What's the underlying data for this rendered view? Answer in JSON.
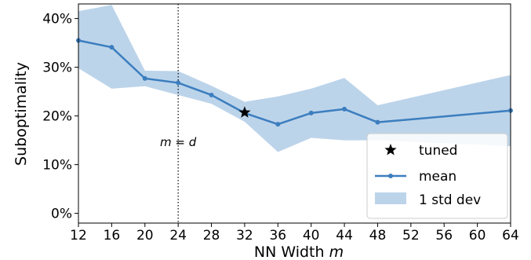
{
  "chart_data": {
    "type": "line",
    "xlabel": "NN Width m",
    "ylabel": "Suboptimality",
    "xlim": [
      12,
      64
    ],
    "ylim": [
      -0.02,
      0.43
    ],
    "x_ticks": [
      12,
      16,
      20,
      24,
      28,
      32,
      36,
      40,
      44,
      48,
      52,
      56,
      60,
      64
    ],
    "x_tick_labels": [
      "12",
      "16",
      "20",
      "24",
      "28",
      "32",
      "36",
      "40",
      "44",
      "48",
      "52",
      "56",
      "60",
      "64"
    ],
    "y_ticks": [
      0.0,
      0.1,
      0.2,
      0.3,
      0.4
    ],
    "y_tick_labels": [
      "0%",
      "10%",
      "20%",
      "30%",
      "40%"
    ],
    "grid": false,
    "legend_position": "lower-right",
    "colors": {
      "mean": "#3c7ebf",
      "band": "#bcd4ea",
      "tuned": "#000000",
      "vline": "#000000"
    },
    "series": [
      {
        "name": "mean",
        "x": [
          12,
          16,
          20,
          24,
          28,
          32,
          36,
          40,
          44,
          48,
          64
        ],
        "y": [
          0.355,
          0.341,
          0.277,
          0.268,
          0.243,
          0.206,
          0.183,
          0.206,
          0.214,
          0.187,
          0.211
        ]
      },
      {
        "name": "1 std dev",
        "x": [
          12,
          16,
          20,
          24,
          28,
          32,
          36,
          40,
          44,
          48,
          64
        ],
        "lower": [
          0.298,
          0.256,
          0.261,
          0.243,
          0.225,
          0.188,
          0.126,
          0.155,
          0.15,
          0.15,
          0.138
        ],
        "upper": [
          0.415,
          0.428,
          0.293,
          0.292,
          0.262,
          0.229,
          0.24,
          0.256,
          0.278,
          0.222,
          0.284
        ]
      },
      {
        "name": "tuned",
        "x": [
          32
        ],
        "y": [
          0.207
        ]
      }
    ],
    "vline": {
      "x": 24
    },
    "annotation": {
      "text": "m = d",
      "x": 24,
      "y": 0.148
    },
    "legend": [
      "tuned",
      "mean",
      "1 std dev"
    ]
  }
}
